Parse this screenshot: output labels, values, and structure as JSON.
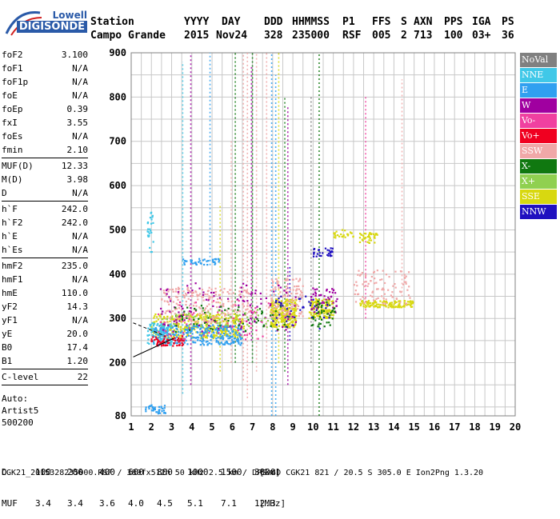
{
  "logo": {
    "line1": "Lowell",
    "line2": "DIGISONDE"
  },
  "header": {
    "row1": [
      "Station",
      "YYYY",
      "DAY",
      "DDD",
      "HHMMSS",
      "P1",
      "FFS",
      "S",
      "AXN",
      "PPS",
      "IGA",
      "PS"
    ],
    "row2": [
      "Campo Grande",
      "2015",
      "Nov24",
      "328",
      "235000",
      "RSF",
      "005",
      "2",
      "713",
      "100",
      "03+",
      "36"
    ]
  },
  "params": [
    {
      "k": "foF2",
      "v": "3.100"
    },
    {
      "k": "foF1",
      "v": "N/A"
    },
    {
      "k": "foF1p",
      "v": "N/A"
    },
    {
      "k": "foE",
      "v": "N/A"
    },
    {
      "k": "foEp",
      "v": "0.39"
    },
    {
      "k": "fxI",
      "v": "3.55"
    },
    {
      "k": "foEs",
      "v": "N/A"
    },
    {
      "k": "fmin",
      "v": "2.10"
    },
    {
      "sep": true
    },
    {
      "k": "MUF(D)",
      "v": "12.33"
    },
    {
      "k": "M(D)",
      "v": "3.98"
    },
    {
      "k": "D",
      "v": "N/A"
    },
    {
      "sep": true
    },
    {
      "k": "h`F",
      "v": "242.0"
    },
    {
      "k": "h`F2",
      "v": "242.0"
    },
    {
      "k": "h`E",
      "v": "N/A"
    },
    {
      "k": "h`Es",
      "v": "N/A"
    },
    {
      "sep": true
    },
    {
      "k": "hmF2",
      "v": "235.0"
    },
    {
      "k": "hmF1",
      "v": "N/A"
    },
    {
      "k": "hmE",
      "v": "110.0"
    },
    {
      "k": "yF2",
      "v": "14.3"
    },
    {
      "k": "yF1",
      "v": "N/A"
    },
    {
      "k": "yE",
      "v": "20.0"
    },
    {
      "k": "B0",
      "v": "17.4"
    },
    {
      "k": "B1",
      "v": "1.20"
    },
    {
      "sep": true
    },
    {
      "k": "C-level",
      "v": "22"
    },
    {
      "sep": true
    }
  ],
  "notes": [
    "Auto:",
    "Artist5",
    "500200"
  ],
  "legend": [
    {
      "label": "NoVal",
      "color": "#808080"
    },
    {
      "label": "NNE",
      "color": "#40c8e8"
    },
    {
      "label": "E",
      "color": "#30a0f0"
    },
    {
      "label": "W",
      "color": "#a000a0"
    },
    {
      "label": "Vo-",
      "color": "#f040a0"
    },
    {
      "label": "Vo+",
      "color": "#f00020"
    },
    {
      "label": "SSW",
      "color": "#f0a8a8"
    },
    {
      "label": "X-",
      "color": "#107810"
    },
    {
      "label": "X+",
      "color": "#90d050"
    },
    {
      "label": "SSE",
      "color": "#d8d810"
    },
    {
      "label": "NNW",
      "color": "#2010c0"
    }
  ],
  "mufTable": {
    "dLabel": "D",
    "dValues": [
      "100",
      "200",
      "400",
      "600",
      "800",
      "1000",
      "1500",
      "3000"
    ],
    "dUnit": "[km]",
    "mufLabel": "MUF",
    "mufValues": [
      "3.4",
      "3.4",
      "3.6",
      "4.0",
      "4.5",
      "5.1",
      "7.1",
      "12.3"
    ],
    "mufUnit": "[MHz]"
  },
  "footer": "CGK21_2015328235000.RSF / 380fx512h 50 kHz 2.5 km / DPS-4D CGK21 821 / 20.5 S 305.0 E Ion2Png 1.3.20",
  "chart_data": {
    "type": "scatter",
    "xlim": [
      1,
      20
    ],
    "ylim": [
      80,
      900
    ],
    "xticks": [
      1,
      2,
      3,
      4,
      5,
      6,
      7,
      8,
      9,
      10,
      11,
      12,
      13,
      14,
      15,
      16,
      17,
      18,
      19,
      20
    ],
    "yticks": [
      200,
      300,
      400,
      500,
      600,
      700,
      800,
      900
    ],
    "ytickLabels": [
      "200",
      "300",
      "400",
      "500",
      "600",
      "700",
      "800",
      "900"
    ],
    "ybottomLabel": "80",
    "grid": true,
    "legend_position": "right",
    "x_units": "MHz",
    "y_units": "km",
    "clusters": [
      {
        "series": "SSE",
        "x": [
          2.0,
          6.6
        ],
        "y": [
          255,
          310
        ],
        "n": 380
      },
      {
        "series": "SSE",
        "x": [
          7.9,
          9.2
        ],
        "y": [
          280,
          345
        ],
        "n": 260
      },
      {
        "series": "SSE",
        "x": [
          9.8,
          11.0
        ],
        "y": [
          300,
          345
        ],
        "n": 140
      },
      {
        "series": "SSE",
        "x": [
          12.3,
          15.0
        ],
        "y": [
          325,
          340
        ],
        "n": 120
      },
      {
        "series": "SSE",
        "x": [
          12.3,
          13.2
        ],
        "y": [
          470,
          495
        ],
        "n": 40
      },
      {
        "series": "SSE",
        "x": [
          11.0,
          12.0
        ],
        "y": [
          480,
          500
        ],
        "n": 25
      },
      {
        "series": "E",
        "x": [
          2.1,
          6.5
        ],
        "y": [
          240,
          285
        ],
        "n": 300
      },
      {
        "series": "E",
        "x": [
          3.5,
          5.4
        ],
        "y": [
          420,
          435
        ],
        "n": 40
      },
      {
        "series": "E",
        "x": [
          1.7,
          2.7
        ],
        "y": [
          85,
          105
        ],
        "n": 40
      },
      {
        "series": "NNE",
        "x": [
          1.8,
          3.0
        ],
        "y": [
          240,
          290
        ],
        "n": 80
      },
      {
        "series": "NNE",
        "x": [
          1.8,
          2.1
        ],
        "y": [
          450,
          540
        ],
        "n": 25
      },
      {
        "series": "SSW",
        "x": [
          2.5,
          7.0
        ],
        "y": [
          290,
          370
        ],
        "n": 220
      },
      {
        "series": "SSW",
        "x": [
          7.8,
          9.5
        ],
        "y": [
          300,
          390
        ],
        "n": 120
      },
      {
        "series": "SSW",
        "x": [
          12.0,
          14.8
        ],
        "y": [
          330,
          410
        ],
        "n": 90
      },
      {
        "series": "W",
        "x": [
          2.4,
          9.2
        ],
        "y": [
          270,
          380
        ],
        "n": 110
      },
      {
        "series": "W",
        "x": [
          9.9,
          11.2
        ],
        "y": [
          310,
          370
        ],
        "n": 50
      },
      {
        "series": "Vo-",
        "x": [
          2.3,
          7.8
        ],
        "y": [
          250,
          340
        ],
        "n": 60
      },
      {
        "series": "Vo+",
        "x": [
          2.0,
          3.6
        ],
        "y": [
          238,
          260
        ],
        "n": 60
      },
      {
        "series": "X-",
        "x": [
          3.0,
          9.0
        ],
        "y": [
          270,
          330
        ],
        "n": 60
      },
      {
        "series": "X-",
        "x": [
          9.9,
          11.1
        ],
        "y": [
          280,
          340
        ],
        "n": 40
      },
      {
        "series": "X+",
        "x": [
          2.5,
          8.0
        ],
        "y": [
          280,
          320
        ],
        "n": 50
      },
      {
        "series": "NNW",
        "x": [
          10.0,
          11.0
        ],
        "y": [
          440,
          460
        ],
        "n": 30
      },
      {
        "series": "NNW",
        "x": [
          8.0,
          11.0
        ],
        "y": [
          275,
          350
        ],
        "n": 40
      }
    ],
    "verticalStreaks": [
      {
        "series": "SSW",
        "x": 6.55,
        "y": [
          160,
          900
        ]
      },
      {
        "series": "SSW",
        "x": 6.75,
        "y": [
          120,
          900
        ]
      },
      {
        "series": "SSW",
        "x": 7.2,
        "y": [
          180,
          900
        ]
      },
      {
        "series": "SSW",
        "x": 7.7,
        "y": [
          200,
          900
        ]
      },
      {
        "series": "SSW",
        "x": 5.95,
        "y": [
          200,
          700
        ]
      },
      {
        "series": "E",
        "x": 7.95,
        "y": [
          80,
          900
        ]
      },
      {
        "series": "E",
        "x": 8.15,
        "y": [
          80,
          850
        ]
      },
      {
        "series": "E",
        "x": 4.9,
        "y": [
          420,
          900
        ]
      },
      {
        "series": "NNE",
        "x": 3.55,
        "y": [
          130,
          880
        ]
      },
      {
        "series": "X-",
        "x": 6.15,
        "y": [
          200,
          900
        ]
      },
      {
        "series": "X-",
        "x": 7.0,
        "y": [
          200,
          900
        ]
      },
      {
        "series": "X-",
        "x": 8.6,
        "y": [
          180,
          800
        ]
      },
      {
        "series": "X-",
        "x": 10.3,
        "y": [
          80,
          900
        ]
      },
      {
        "series": "W",
        "x": 3.95,
        "y": [
          150,
          900
        ]
      },
      {
        "series": "W",
        "x": 6.95,
        "y": [
          250,
          870
        ]
      },
      {
        "series": "W",
        "x": 8.75,
        "y": [
          150,
          780
        ]
      },
      {
        "series": "SSE",
        "x": 8.3,
        "y": [
          200,
          900
        ]
      },
      {
        "series": "SSE",
        "x": 5.4,
        "y": [
          180,
          560
        ]
      },
      {
        "series": "NNW",
        "x": 8.85,
        "y": [
          250,
          420
        ]
      },
      {
        "series": "NoVal",
        "x": 9.9,
        "y": [
          200,
          800
        ]
      },
      {
        "series": "Vo-",
        "x": 12.6,
        "y": [
          300,
          800
        ]
      },
      {
        "series": "SSW",
        "x": 14.4,
        "y": [
          350,
          840
        ]
      }
    ],
    "traceLines": [
      {
        "style": "solid",
        "points": [
          [
            1.1,
            213
          ],
          [
            3.1,
            255
          ]
        ]
      },
      {
        "style": "dashed",
        "points": [
          [
            1.1,
            290
          ],
          [
            2.7,
            260
          ]
        ]
      }
    ]
  }
}
